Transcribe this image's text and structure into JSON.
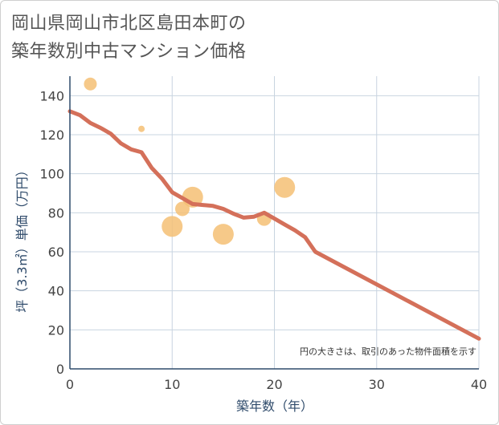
{
  "chart_data": {
    "type": "scatter",
    "title_lines": [
      "岡山県岡山市北区島田本町の",
      "築年数別中古マンション価格"
    ],
    "xlabel": "築年数（年）",
    "ylabel": "坪（3.3㎡）単価（万円）",
    "xlim": [
      0,
      40
    ],
    "ylim": [
      0,
      150
    ],
    "x_ticks": [
      0,
      10,
      20,
      30,
      40
    ],
    "y_ticks": [
      0,
      20,
      40,
      60,
      80,
      100,
      120,
      140
    ],
    "note": "円の大きさは、取引のあった物件面積を示す",
    "colors": {
      "bubble": "#f5c074",
      "trend": "#d4705a",
      "grid": "#c8d4e0",
      "axis": "#2f4b6b"
    },
    "bubbles": [
      {
        "x": 2,
        "y": 146,
        "size": 8
      },
      {
        "x": 7,
        "y": 123,
        "size": 4
      },
      {
        "x": 10,
        "y": 73,
        "size": 13
      },
      {
        "x": 11,
        "y": 82,
        "size": 9
      },
      {
        "x": 12,
        "y": 88,
        "size": 13
      },
      {
        "x": 15,
        "y": 69,
        "size": 13
      },
      {
        "x": 19,
        "y": 77,
        "size": 9
      },
      {
        "x": 21,
        "y": 93,
        "size": 13
      }
    ],
    "trend": [
      {
        "x": 0,
        "y": 132
      },
      {
        "x": 1,
        "y": 130
      },
      {
        "x": 2,
        "y": 126
      },
      {
        "x": 3,
        "y": 123.5
      },
      {
        "x": 4,
        "y": 120.5
      },
      {
        "x": 5,
        "y": 115.5
      },
      {
        "x": 6,
        "y": 112.5
      },
      {
        "x": 7,
        "y": 111
      },
      {
        "x": 8,
        "y": 103
      },
      {
        "x": 9,
        "y": 97.5
      },
      {
        "x": 10,
        "y": 90.5
      },
      {
        "x": 11,
        "y": 87.5
      },
      {
        "x": 12,
        "y": 84.5
      },
      {
        "x": 13,
        "y": 84
      },
      {
        "x": 14,
        "y": 83.5
      },
      {
        "x": 15,
        "y": 82
      },
      {
        "x": 16,
        "y": 79.5
      },
      {
        "x": 17,
        "y": 77.5
      },
      {
        "x": 18,
        "y": 78
      },
      {
        "x": 19,
        "y": 80
      },
      {
        "x": 20,
        "y": 77
      },
      {
        "x": 21,
        "y": 74
      },
      {
        "x": 22,
        "y": 71
      },
      {
        "x": 23,
        "y": 67.5
      },
      {
        "x": 24,
        "y": 60
      },
      {
        "x": 40,
        "y": 15.5
      }
    ]
  }
}
